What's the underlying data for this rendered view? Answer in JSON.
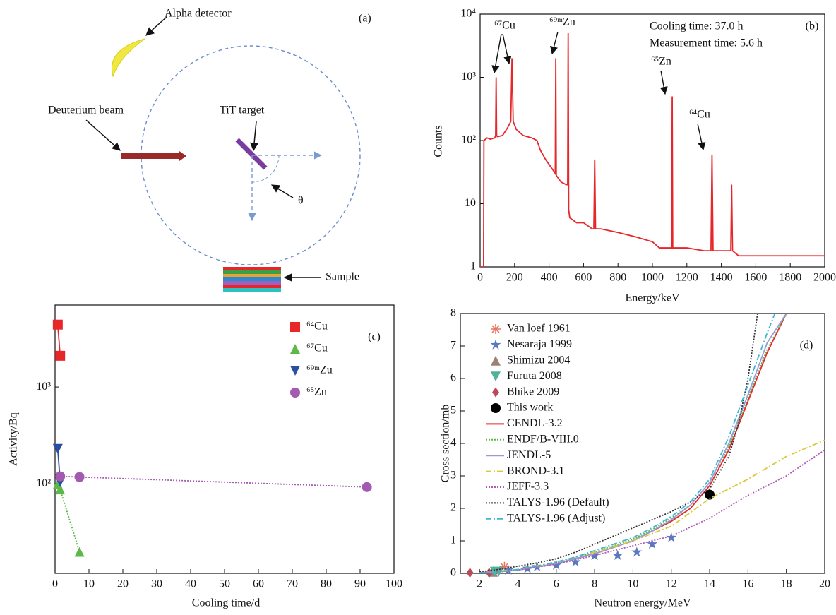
{
  "diagram": {
    "label": "(a)",
    "detector": "Alpha detector",
    "beam": "Deuterium beam",
    "target": "TiT target",
    "angle": "θ",
    "sample": "Sample"
  },
  "chart_data": [
    {
      "type": "line",
      "label": "(b)",
      "x_label": "Energy/keV",
      "y_label": "Counts",
      "log_y": true,
      "xlim": [
        0,
        2000
      ],
      "xticks": [
        0,
        200,
        400,
        600,
        800,
        1000,
        1200,
        1400,
        1600,
        1800,
        2000
      ],
      "ylim": [
        1,
        10000
      ],
      "yticks": [
        1,
        10,
        {
          "value": 100,
          "label": "10²"
        },
        {
          "value": 1000,
          "label": "10³"
        },
        {
          "value": 10000,
          "label": "10⁴"
        }
      ],
      "annotations": [
        "⁶⁷Cu",
        "⁶⁹ᵐZn",
        "Cooling time: 37.0 h",
        "Measurement time: 5.6 h",
        "⁶⁵Zn",
        "⁶⁴Cu"
      ],
      "series": [
        {
          "color": "#e8262a",
          "style": "solid",
          "x": [
            0,
            20,
            22,
            40,
            60,
            85,
            90,
            93,
            96,
            100,
            130,
            160,
            178,
            185,
            192,
            210,
            250,
            300,
            330,
            350,
            380,
            420,
            436,
            439,
            442,
            470,
            500,
            508,
            511,
            514,
            520,
            560,
            600,
            650,
            660,
            665,
            670,
            700,
            800,
            900,
            1000,
            1040,
            1100,
            1112,
            1115,
            1118,
            1130,
            1200,
            1300,
            1340,
            1346,
            1352,
            1400,
            1455,
            1460,
            1465,
            1500,
            1600,
            1700,
            1800,
            1900,
            2000
          ],
          "values": [
            1,
            1,
            100,
            110,
            105,
            110,
            120,
            1000,
            120,
            115,
            120,
            160,
            200,
            2000,
            200,
            150,
            120,
            110,
            100,
            70,
            50,
            35,
            30,
            2000,
            28,
            22,
            20,
            20,
            5000,
            8,
            6,
            5,
            5,
            4,
            4,
            50,
            4,
            4,
            3.5,
            3,
            2.5,
            2,
            2,
            2,
            500,
            2,
            2,
            2,
            1.8,
            1.8,
            60,
            1.8,
            1.8,
            1.8,
            20,
            1.8,
            1.5,
            1.5,
            1.5,
            1.5,
            1.5,
            1.5
          ]
        }
      ]
    },
    {
      "type": "line",
      "label": "(c)",
      "x_label": "Cooling time/d",
      "y_label": "Activity/Bq",
      "log_y": true,
      "xlim": [
        0,
        100
      ],
      "xticks": [
        0,
        10,
        20,
        30,
        40,
        50,
        60,
        70,
        80,
        90,
        100
      ],
      "ylim": [
        12,
        7000
      ],
      "yticks": [
        {
          "value": 100,
          "label": "10²"
        },
        {
          "value": 1000,
          "label": "10³"
        }
      ],
      "series": [
        {
          "name": "⁶⁴Cu",
          "color": "#e8262a",
          "marker": "square",
          "style": "solid",
          "x": [
            0.8,
            1.5
          ],
          "values": [
            4400,
            2100
          ]
        },
        {
          "name": "⁶⁷Cu",
          "color": "#5cb847",
          "marker": "triangle",
          "style": "dotted",
          "x": [
            0.8,
            1.5,
            7.2
          ],
          "values": [
            100,
            88,
            20
          ]
        },
        {
          "name": "⁶⁹ᵐZu",
          "color": "#2a4fa0",
          "marker": "triangle-down",
          "style": "solid",
          "x": [
            0.8,
            1.5
          ],
          "values": [
            230,
            105
          ]
        },
        {
          "name": "⁶⁵Zn",
          "color": "#a35ab0",
          "marker": "circle",
          "style": "dotted",
          "x": [
            1.5,
            7.2,
            92
          ],
          "values": [
            120,
            118,
            93
          ]
        }
      ]
    },
    {
      "type": "line",
      "label": "(d)",
      "x_label": "Neutron energy/MeV",
      "y_label": "Cross section/mb",
      "log_y": false,
      "xlim": [
        1,
        20
      ],
      "xticks": [
        2,
        4,
        6,
        8,
        10,
        12,
        14,
        16,
        18,
        20
      ],
      "ylim": [
        0,
        8
      ],
      "yticks": [
        0,
        1,
        2,
        3,
        4,
        5,
        6,
        7,
        8
      ],
      "series": [
        {
          "name": "Van loef 1961",
          "color": "#e8705a",
          "marker": "asterisk",
          "x": [
            3.3
          ],
          "values": [
            0.2
          ]
        },
        {
          "name": "Nesaraja 1999",
          "color": "#5a78c0",
          "marker": "star",
          "x": [
            2.7,
            3.5,
            4.5,
            5,
            6,
            7,
            8,
            9.2,
            10.2,
            11,
            12
          ],
          "values": [
            0.05,
            0.1,
            0.15,
            0.2,
            0.25,
            0.35,
            0.55,
            0.55,
            0.65,
            0.9,
            1.1
          ]
        },
        {
          "name": "Shimizu 2004",
          "color": "#a08070",
          "marker": "triangle",
          "x": [
            2.7
          ],
          "values": [
            0.05
          ]
        },
        {
          "name": "Furuta 2008",
          "color": "#4fb29a",
          "marker": "triangle-down",
          "x": [
            2.8,
            3
          ],
          "values": [
            0.05,
            0.05
          ]
        },
        {
          "name": "Bhike 2009",
          "color": "#b84a5a",
          "marker": "diamond",
          "x": [
            1.5,
            2.5
          ],
          "values": [
            0.02,
            0.02
          ]
        },
        {
          "name": "This work",
          "color": "#000000",
          "marker": "circle",
          "x": [
            14
          ],
          "values": [
            2.42
          ]
        },
        {
          "name": "CENDL-3.2",
          "color": "#e8262a",
          "style": "solid",
          "x": [
            2,
            3,
            4,
            5,
            6,
            7,
            8,
            9,
            10,
            11,
            12,
            13,
            14,
            15,
            16,
            17,
            18
          ],
          "values": [
            0.02,
            0.05,
            0.1,
            0.2,
            0.3,
            0.45,
            0.6,
            0.8,
            1.0,
            1.3,
            1.6,
            2.0,
            2.7,
            3.8,
            5.3,
            6.8,
            8.0
          ]
        },
        {
          "name": "ENDF/B-VIII.0",
          "color": "#5cb847",
          "style": "dotted",
          "x": [
            2,
            3,
            4,
            5,
            6,
            7,
            8,
            9,
            10,
            11,
            12,
            13,
            14,
            15,
            16,
            17,
            18
          ],
          "values": [
            0.02,
            0.05,
            0.1,
            0.2,
            0.32,
            0.48,
            0.65,
            0.85,
            1.05,
            1.35,
            1.7,
            2.1,
            2.8,
            3.9,
            5.4,
            6.9,
            8.0
          ]
        },
        {
          "name": "JENDL-5",
          "color": "#9a9ad8",
          "style": "solid",
          "x": [
            2,
            3,
            4,
            5,
            6,
            7,
            8,
            9,
            10,
            11,
            12,
            13,
            14,
            15,
            16,
            17,
            18
          ],
          "values": [
            0.02,
            0.05,
            0.1,
            0.2,
            0.3,
            0.45,
            0.6,
            0.8,
            1.0,
            1.3,
            1.65,
            2.1,
            2.8,
            4.0,
            5.5,
            7.1,
            8.0
          ]
        },
        {
          "name": "BROND-3.1",
          "color": "#d8c83a",
          "style": "dashdot",
          "x": [
            2,
            4,
            6,
            8,
            10,
            12,
            14,
            16,
            18,
            20
          ],
          "values": [
            0.02,
            0.12,
            0.35,
            0.65,
            1.0,
            1.45,
            2.3,
            2.9,
            3.6,
            4.1
          ]
        },
        {
          "name": "JEFF-3.3",
          "color": "#b05ab8",
          "style": "dotted",
          "x": [
            2,
            4,
            6,
            8,
            10,
            12,
            14,
            16,
            18,
            20
          ],
          "values": [
            0.02,
            0.1,
            0.28,
            0.55,
            0.85,
            1.15,
            1.7,
            2.4,
            3.0,
            3.8
          ]
        },
        {
          "name": "TALYS-1.96 (Default)",
          "color": "#333333",
          "style": "dotted",
          "x": [
            2,
            3,
            4,
            5,
            6,
            7,
            8,
            9,
            10,
            11,
            12,
            13,
            14,
            15,
            15.5,
            16,
            16.5
          ],
          "values": [
            0.05,
            0.12,
            0.22,
            0.32,
            0.45,
            0.65,
            0.9,
            1.15,
            1.4,
            1.65,
            1.9,
            2.2,
            2.6,
            3.6,
            4.6,
            6.0,
            8.0
          ]
        },
        {
          "name": "TALYS-1.96 (Adjust)",
          "color": "#3ab8d0",
          "style": "dashdot",
          "x": [
            2,
            3,
            4,
            5,
            6,
            7,
            8,
            9,
            10,
            11,
            12,
            13,
            14,
            15,
            16,
            17,
            17.4
          ],
          "values": [
            0.02,
            0.05,
            0.12,
            0.22,
            0.35,
            0.5,
            0.7,
            0.9,
            1.1,
            1.4,
            1.75,
            2.2,
            2.9,
            4.2,
            5.8,
            7.4,
            8.0
          ]
        }
      ]
    }
  ]
}
